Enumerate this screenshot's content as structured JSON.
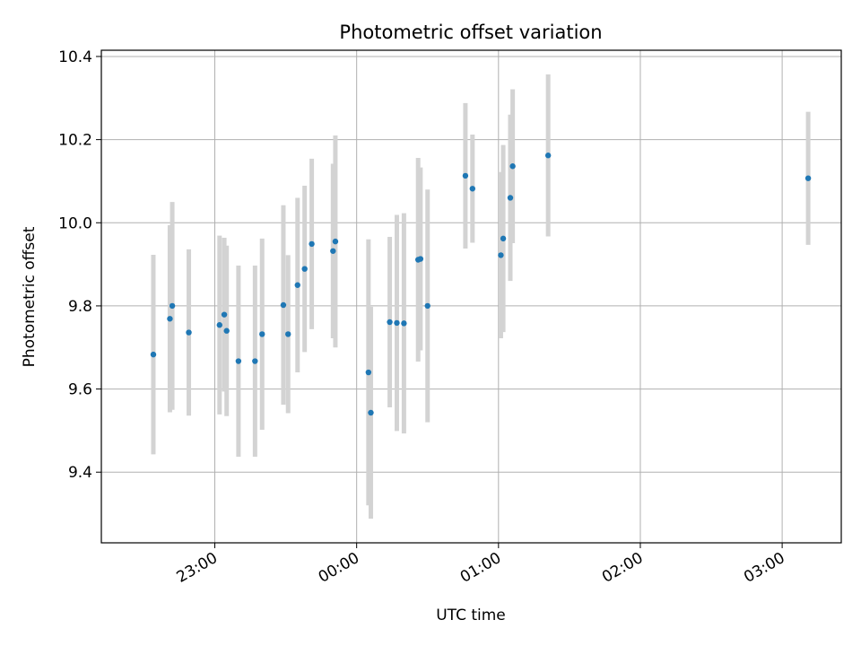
{
  "chart_data": {
    "type": "scatter",
    "title": "Photometric offset variation",
    "xlabel": "UTC time",
    "ylabel": "Photometric offset",
    "x_ticks": [
      "23:00",
      "00:00",
      "01:00",
      "02:00",
      "03:00"
    ],
    "y_ticks": [
      "9.4",
      "9.6",
      "9.8",
      "10.0",
      "10.2",
      "10.4"
    ],
    "xlim": [
      "22:12",
      "03:25"
    ],
    "ylim": [
      9.23,
      10.415
    ],
    "grid": true,
    "colors": {
      "marker": "#1f77b4",
      "errorbar": "#d3d3d3",
      "grid": "#b0b0b0"
    },
    "points": [
      {
        "x": "22:34",
        "y": 9.683,
        "err": 0.24
      },
      {
        "x": "22:41",
        "y": 9.769,
        "err": 0.225
      },
      {
        "x": "22:42",
        "y": 9.8,
        "err": 0.25
      },
      {
        "x": "22:49",
        "y": 9.736,
        "err": 0.2
      },
      {
        "x": "23:02",
        "y": 9.754,
        "err": 0.215
      },
      {
        "x": "23:04",
        "y": 9.779,
        "err": 0.185
      },
      {
        "x": "23:05",
        "y": 9.74,
        "err": 0.205
      },
      {
        "x": "23:10",
        "y": 9.667,
        "err": 0.23
      },
      {
        "x": "23:17",
        "y": 9.667,
        "err": 0.23
      },
      {
        "x": "23:20",
        "y": 9.732,
        "err": 0.23
      },
      {
        "x": "23:29",
        "y": 9.802,
        "err": 0.24
      },
      {
        "x": "23:31",
        "y": 9.732,
        "err": 0.19
      },
      {
        "x": "23:35",
        "y": 9.85,
        "err": 0.21
      },
      {
        "x": "23:38",
        "y": 9.889,
        "err": 0.2
      },
      {
        "x": "23:41",
        "y": 9.949,
        "err": 0.205
      },
      {
        "x": "23:50",
        "y": 9.932,
        "err": 0.21
      },
      {
        "x": "23:51",
        "y": 9.955,
        "err": 0.255
      },
      {
        "x": "00:05",
        "y": 9.64,
        "err": 0.32
      },
      {
        "x": "00:06",
        "y": 9.543,
        "err": 0.255
      },
      {
        "x": "00:14",
        "y": 9.761,
        "err": 0.205
      },
      {
        "x": "00:17",
        "y": 9.759,
        "err": 0.26
      },
      {
        "x": "00:20",
        "y": 9.758,
        "err": 0.265
      },
      {
        "x": "00:26",
        "y": 9.911,
        "err": 0.245
      },
      {
        "x": "00:27",
        "y": 9.913,
        "err": 0.22
      },
      {
        "x": "00:30",
        "y": 9.8,
        "err": 0.28
      },
      {
        "x": "00:46",
        "y": 10.113,
        "err": 0.175
      },
      {
        "x": "00:49",
        "y": 10.082,
        "err": 0.13
      },
      {
        "x": "01:01",
        "y": 9.922,
        "err": 0.2
      },
      {
        "x": "01:02",
        "y": 9.962,
        "err": 0.225
      },
      {
        "x": "01:05",
        "y": 10.06,
        "err": 0.2
      },
      {
        "x": "01:06",
        "y": 10.136,
        "err": 0.185
      },
      {
        "x": "01:21",
        "y": 10.162,
        "err": 0.195
      },
      {
        "x": "03:11",
        "y": 10.107,
        "err": 0.16
      }
    ]
  }
}
